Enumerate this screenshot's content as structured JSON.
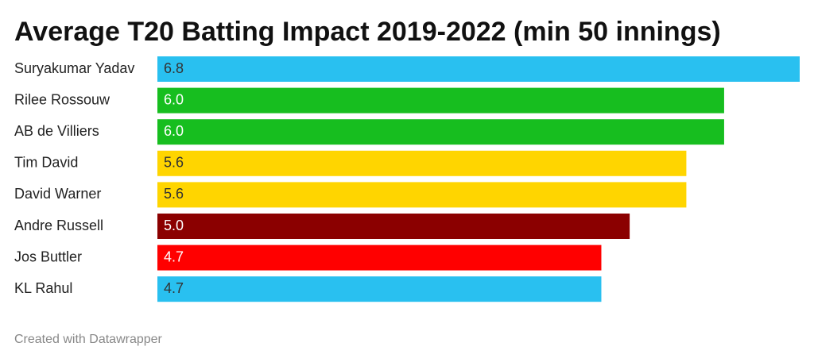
{
  "chart_data": {
    "type": "bar",
    "orientation": "horizontal",
    "title": "Average T20 Batting Impact 2019-2022 (min 50 innings)",
    "categories": [
      "Suryakumar Yadav",
      "Rilee Rossouw",
      "AB de Villiers",
      "Tim David",
      "David Warner",
      "Andre Russell",
      "Jos Buttler",
      "KL Rahul"
    ],
    "values": [
      6.8,
      6.0,
      6.0,
      5.6,
      5.6,
      5.0,
      4.7,
      4.7
    ],
    "value_labels": [
      "6.8",
      "6.0",
      "6.0",
      "5.6",
      "5.6",
      "5.0",
      "4.7",
      "4.7"
    ],
    "colors": [
      "#29c0f0",
      "#17be1f",
      "#17be1f",
      "#ffd500",
      "#ffd500",
      "#8b0000",
      "#ff0000",
      "#29c0f0"
    ],
    "footer": "Created with Datawrapper"
  }
}
